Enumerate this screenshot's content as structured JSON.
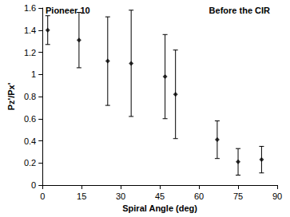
{
  "chart_data": {
    "type": "scatter",
    "title": "Pioneer 10",
    "annotations": [
      "Before the CIR"
    ],
    "x_label": "Spiral Angle (deg)",
    "y_label": "Pz'/Px'",
    "x": [
      2,
      14,
      25,
      34,
      47,
      51,
      67,
      75,
      84
    ],
    "values": [
      1.4,
      1.31,
      1.12,
      1.1,
      0.98,
      0.82,
      0.41,
      0.21,
      0.23
    ],
    "errors": [
      0.13,
      0.25,
      0.4,
      0.48,
      0.38,
      0.4,
      0.17,
      0.12,
      0.12
    ],
    "color": "#000000",
    "marker": "diamond",
    "xlim": [
      0,
      90
    ],
    "xticks": [
      0,
      15,
      30,
      45,
      60,
      75,
      90
    ],
    "ylim": [
      0,
      1.6
    ],
    "yticks": [
      0,
      0.2,
      0.4,
      0.6,
      0.8,
      1,
      1.2,
      1.4,
      1.6
    ],
    "grid": false
  }
}
